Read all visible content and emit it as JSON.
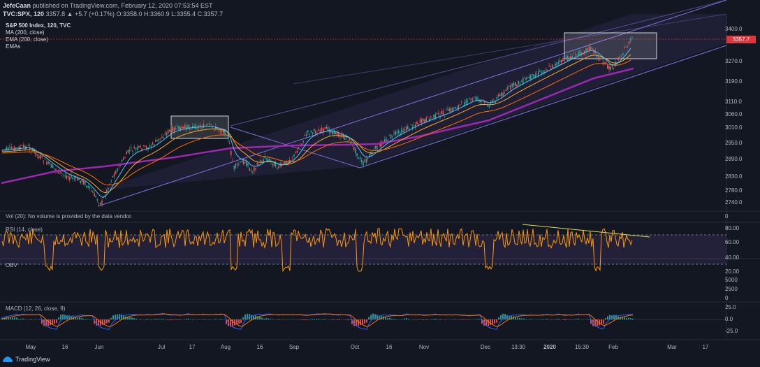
{
  "header": {
    "publisher": "JefeCaan",
    "published_text": "published on TradingView.com, February 12, 2020 07:53:54 EST",
    "symbol": "TVC:SPX, 120",
    "quote": "3357.8  ▲ +5.7 (+0.17%)  O:3358.0  H:3360.9  L:3355.4  C:3357.7"
  },
  "legend": {
    "title": "S&P 500 Index, 120, TVC",
    "items": [
      "MA (200, close)",
      "EMA (200, close)",
      "EMAs"
    ]
  },
  "price_axis": [
    "3400.0",
    "3270.0",
    "3190.0",
    "3110.0",
    "3060.0",
    "3010.0",
    "2950.0",
    "2890.0",
    "2830.0",
    "2780.0",
    "2740.0"
  ],
  "last_price": "3357.7",
  "vol_pane": {
    "label": "Vol (20): No volume is provided by the data vendor.",
    "axis": [
      "0"
    ]
  },
  "rsi_pane": {
    "label": "RSI (14, close)",
    "axis": [
      "80.00",
      "60.00",
      "40.00",
      "20.00"
    ]
  },
  "obv_pane": {
    "label": "OBV",
    "axis": [
      "5000",
      "2500",
      "0"
    ]
  },
  "macd_pane": {
    "label": "MACD (12, 26, close, 9)",
    "axis": [
      "25.0",
      "0.0",
      "-25.0"
    ]
  },
  "time_axis": [
    "May",
    "16",
    "Jun",
    "Jul",
    "17",
    "Aug",
    "16",
    "Sep",
    "Oct",
    "16",
    "Nov",
    "Dec",
    "13:30",
    "2020",
    "15:30",
    "Feb",
    "Mar",
    "17"
  ],
  "brand": "TradingView",
  "colors": {
    "background": "#131722",
    "candle_up": "#26a69a",
    "candle_down": "#ef5350",
    "ma200": "#9c27b0",
    "rsi": "#ff9800",
    "channel": "#7e6fd6",
    "last_price": "#e0353d"
  }
}
